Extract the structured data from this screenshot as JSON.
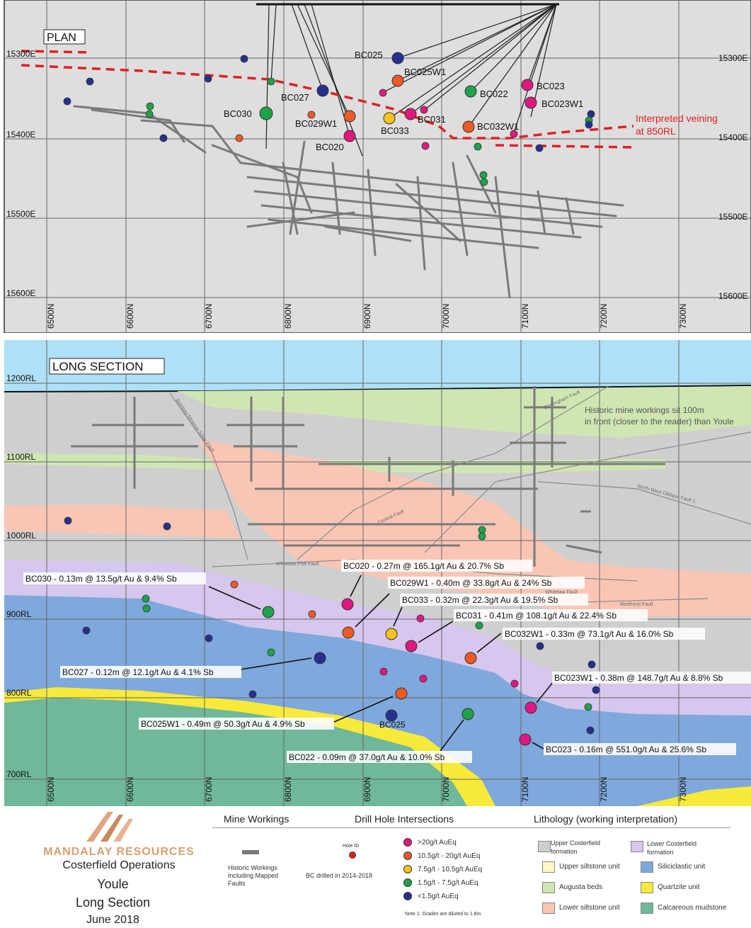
{
  "plan": {
    "title": "PLAN",
    "easting_labels": [
      "15300E",
      "15400E",
      "15500E",
      "15600E"
    ],
    "northing_labels": [
      "6500N",
      "6600N",
      "6700N",
      "6800N",
      "6900N",
      "7000N",
      "7100N",
      "7200N",
      "7300N"
    ],
    "vein_label_line1": "Interpreted veining",
    "vein_label_line2": "at 850RL",
    "holes": [
      {
        "id": "BC025",
        "grade": "<1.5g/t AuEq"
      },
      {
        "id": "BC025W1",
        "grade": "10.5g/t - 20g/t AuEq"
      },
      {
        "id": "BC023",
        "grade": ">20g/t AuEq"
      },
      {
        "id": "BC023W1",
        "grade": ">20g/t AuEq"
      },
      {
        "id": "BC027",
        "grade": "<1.5g/t AuEq"
      },
      {
        "id": "BC022",
        "grade": "1.5g/t - 7.5g/t AuEq"
      },
      {
        "id": "BC030",
        "grade": "1.5g/t - 7.5g/t AuEq"
      },
      {
        "id": "BC029W1",
        "grade": "10.5g/t - 20g/t AuEq"
      },
      {
        "id": "BC031",
        "grade": ">20g/t AuEq"
      },
      {
        "id": "BC033",
        "grade": "7.5g/t - 10.5g/t AuEq"
      },
      {
        "id": "BC032W1",
        "grade": "10.5g/t - 20g/t AuEq"
      },
      {
        "id": "BC020",
        "grade": ">20g/t AuEq"
      }
    ]
  },
  "section": {
    "title": "LONG SECTION",
    "rl_labels": [
      "1200RL",
      "1100RL",
      "1000RL",
      "900RL",
      "800RL",
      "700RL"
    ],
    "northing_labels": [
      "6500N",
      "6600N",
      "6700N",
      "6800N",
      "6900N",
      "7000N",
      "7100N",
      "7200N",
      "7300N"
    ],
    "note_line1": "Historic mine workings sit 100m",
    "note_line2": "in front (closer to the reader) than Youle",
    "faults": [
      "Bombay-Minerva Splay Fault",
      "Central Fault",
      "North-West Oblique Fault 1",
      "Whitelaw F/W Fault",
      "Birmingham Fault",
      "Medhurst Fault",
      "Whitelaw Fault"
    ],
    "intersections": [
      "BC030 - 0.13m @ 13.5g/t Au & 9.4% Sb",
      "BC020 - 0.27m @ 165.1g/t Au & 20.7% Sb",
      "BC029W1 - 0.40m @ 33.8g/t Au & 24% Sb",
      "BC033 - 0.32m @ 22.3g/t Au & 19.5% Sb",
      "BC031 - 0.41m @ 108.1g/t Au & 22.4% Sb",
      "BC032W1 - 0.33m @ 73.1g/t Au & 16.0% Sb",
      "BC027 - 0.12m @ 12.1g/t Au & 4.1% Sb",
      "BC023W1 - 0.38m @ 148.7g/t Au & 8.8% Sb",
      "BC025W1 - 0.49m @ 50.3g/t Au & 4.9% Sb",
      "BC022 - 0.09m @ 37.0g/t Au & 10.0% Sb",
      "BC023 - 0.16m @ 551.0g/t Au & 25.6% Sb"
    ],
    "bc025_label": "BC025"
  },
  "legend": {
    "company_name": "MANDALAY RESOURCES",
    "company_sub": "Costerfield Operations",
    "line_youle": "Youle",
    "line_section": "Long Section",
    "line_date": "June 2018",
    "mine_workings_title": "Mine Workings",
    "mine_workings_line1": "Historic Workings",
    "mine_workings_line2": "Including Mapped",
    "mine_workings_line3": "Faults",
    "drill_title": "Drill Hole Intersections",
    "hole_id": "Hole ID",
    "bc_drilled": "BC drilled in 2014-2018",
    "note": "Note 1: Grades are diluted to 1.8m",
    "grades": [
      {
        "label": ">20g/t AuEq",
        "color": "#e0187f"
      },
      {
        "label": "10.5g/t - 20g/t AuEq",
        "color": "#ef5a24"
      },
      {
        "label": "7.5g/t - 10.5g/t AuEq",
        "color": "#f7c31b"
      },
      {
        "label": "1.5g/t - 7.5g/t AuEq",
        "color": "#1fa34a"
      },
      {
        "label": "<1.5g/t AuEq",
        "color": "#26308f"
      }
    ],
    "litho_title": "Lithology (working interpretation)",
    "litho": [
      {
        "label1": "Upper Costerfield",
        "label2": "formation",
        "color": "#cfcfcf"
      },
      {
        "label1": "Lower Costerfield",
        "label2": "formation",
        "color": "#d6c7ee"
      },
      {
        "label1": "Upper siltstone unit",
        "label2": "",
        "color": "#fbf8c4"
      },
      {
        "label1": "Siliciclastic unit",
        "label2": "",
        "color": "#7fa8dc"
      },
      {
        "label1": "Augusta beds",
        "label2": "",
        "color": "#cfe6b3"
      },
      {
        "label1": "Quartzite unit",
        "label2": "",
        "color": "#f7ea3a"
      },
      {
        "label1": "Lower siltstone unit",
        "label2": "",
        "color": "#f9c6b5"
      },
      {
        "label1": "Calcareous mudstone",
        "label2": "",
        "color": "#6fb89a"
      }
    ]
  }
}
